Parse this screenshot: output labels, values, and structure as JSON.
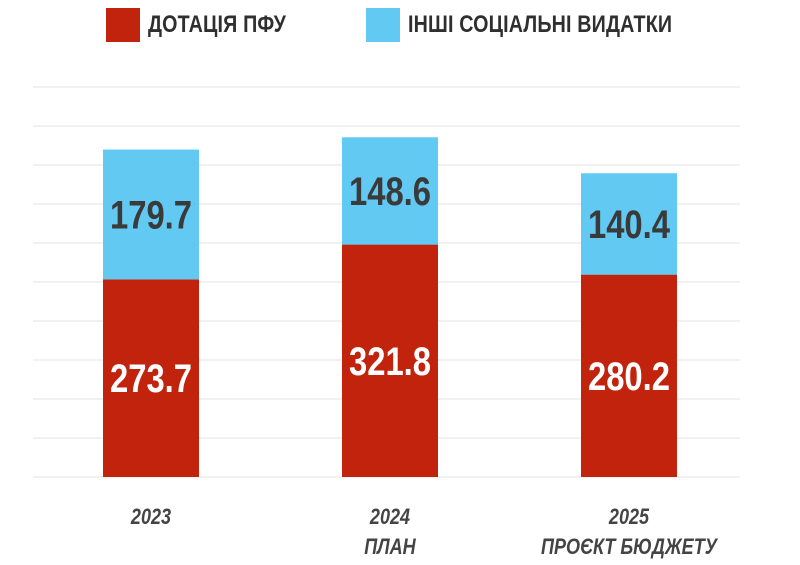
{
  "chart_data": {
    "type": "bar",
    "stacked": true,
    "categories": [
      [
        "2023"
      ],
      [
        "2024",
        "ПЛАН"
      ],
      [
        "2025",
        "ПРОЄКТ БЮДЖЕТУ"
      ]
    ],
    "series": [
      {
        "name": "ДОТАЦІЯ ПФУ",
        "color": "#c1230d",
        "label_color": "#ffffff",
        "values": [
          273.7,
          321.8,
          280.2
        ]
      },
      {
        "name": "ІНШІ СОЦІАЛЬНІ ВИДАТКИ",
        "color": "#62c9f2",
        "label_color": "#3a3a3a",
        "values": [
          179.7,
          148.6,
          140.4
        ]
      }
    ],
    "ylim": [
      0,
      540
    ],
    "grid": true,
    "legend_position": "top"
  }
}
